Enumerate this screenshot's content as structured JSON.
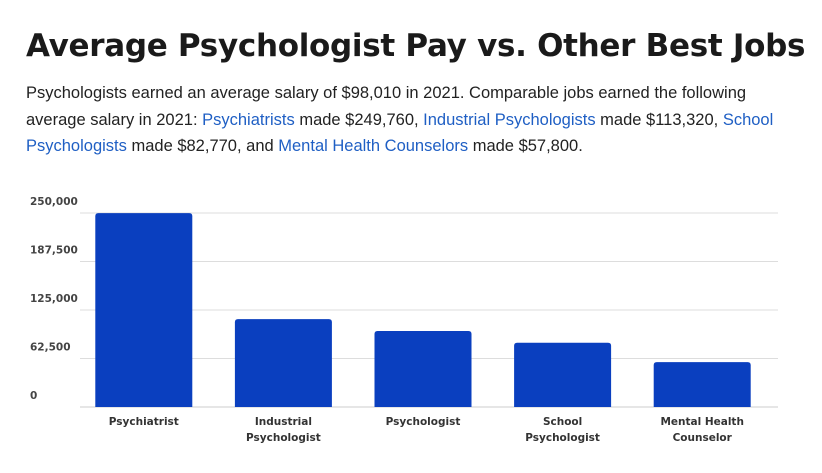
{
  "title": "Average Psychologist Pay vs. Other Best Jobs",
  "description": {
    "intro": "Psychologists earned an average salary of $98,010 in 2021. Comparable jobs earned the following average salary in 2021: ",
    "link1": "Psychiatrists",
    "text1": " made $249,760, ",
    "link2": "Industrial Psychologists",
    "text2": " made $113,320, ",
    "link3": "School Psychologists",
    "text3": " made $82,770, and ",
    "link4": "Mental Health Counselors",
    "text4": " made $57,800."
  },
  "colors": {
    "bar": "#0a3fbf",
    "link": "#1f5fc4",
    "grid": "#dddddd"
  },
  "chart_data": {
    "type": "bar",
    "title": "",
    "xlabel": "",
    "ylabel": "",
    "categories": [
      [
        "Psychiatrist"
      ],
      [
        "Industrial",
        "Psychologist"
      ],
      [
        "Psychologist"
      ],
      [
        "School",
        "Psychologist"
      ],
      [
        "Mental Health",
        "Counselor"
      ]
    ],
    "values": [
      249760,
      113320,
      98010,
      82770,
      57800
    ],
    "yticks": [
      0,
      62500,
      125000,
      187500,
      250000
    ],
    "ytick_labels": [
      "0",
      "62,500",
      "125,000",
      "187,500",
      "250,000"
    ],
    "ylim": [
      0,
      250000
    ],
    "grid": true,
    "legend": "none"
  }
}
